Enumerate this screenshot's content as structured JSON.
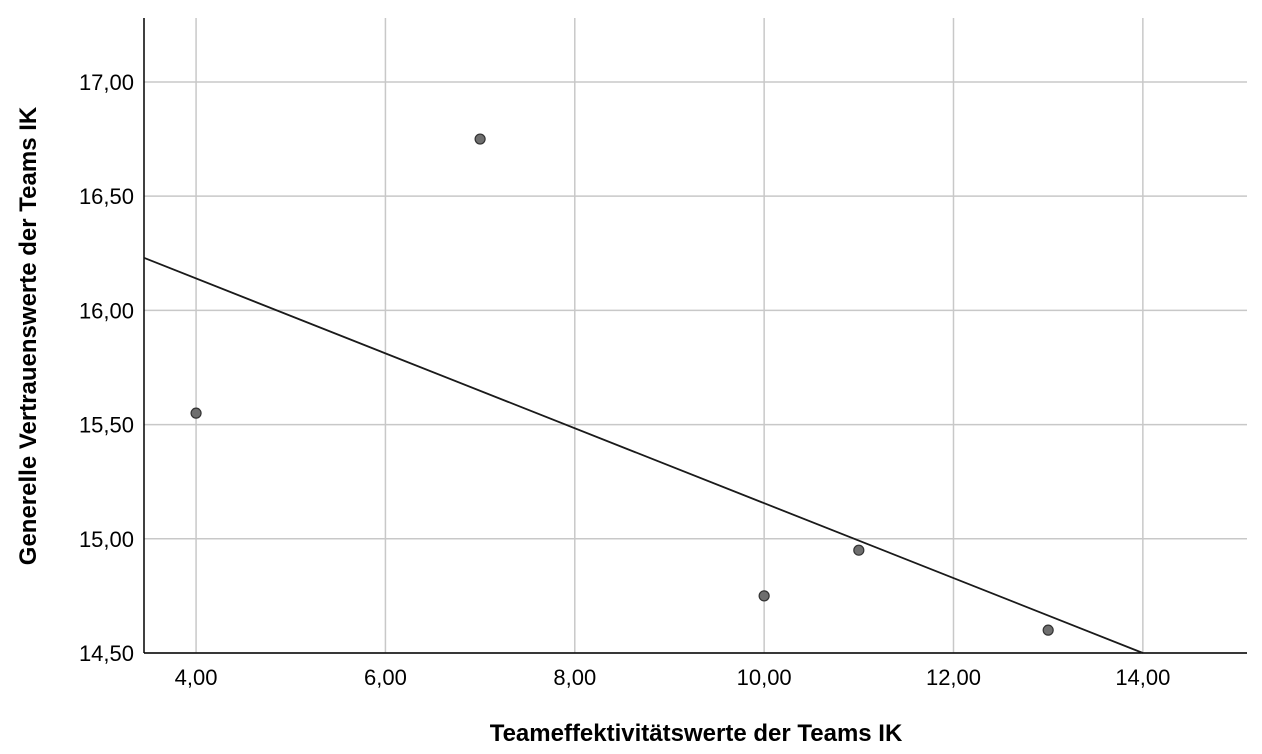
{
  "chart_data": {
    "type": "scatter",
    "xlabel": "Teameffektivitätswerte der Teams IK",
    "ylabel": "Generelle Vertrauenswerte der Teams IK",
    "xlim": [
      3.45,
      15.1
    ],
    "ylim": [
      14.5,
      17.28
    ],
    "x_ticks": [
      4,
      6,
      8,
      10,
      12,
      14
    ],
    "x_tick_labels": [
      "4,00",
      "6,00",
      "8,00",
      "10,00",
      "12,00",
      "14,00"
    ],
    "y_ticks": [
      14.5,
      15.0,
      15.5,
      16.0,
      16.5,
      17.0
    ],
    "y_tick_labels": [
      "14,50",
      "15,00",
      "15,50",
      "16,00",
      "16,50",
      "17,00"
    ],
    "grid": true,
    "points": [
      {
        "x": 4,
        "y": 15.55
      },
      {
        "x": 7,
        "y": 16.75
      },
      {
        "x": 10,
        "y": 14.75
      },
      {
        "x": 11,
        "y": 14.95
      },
      {
        "x": 13,
        "y": 14.6
      }
    ],
    "fit_line": {
      "x": [
        3.45,
        14.0
      ],
      "y": [
        16.23,
        14.5
      ]
    },
    "colors": {
      "point_fill": "#6e6e6e",
      "point_stroke": "#333333",
      "grid": "#c8c8c8",
      "line": "#1a1a1a",
      "axis": "#000000"
    }
  }
}
